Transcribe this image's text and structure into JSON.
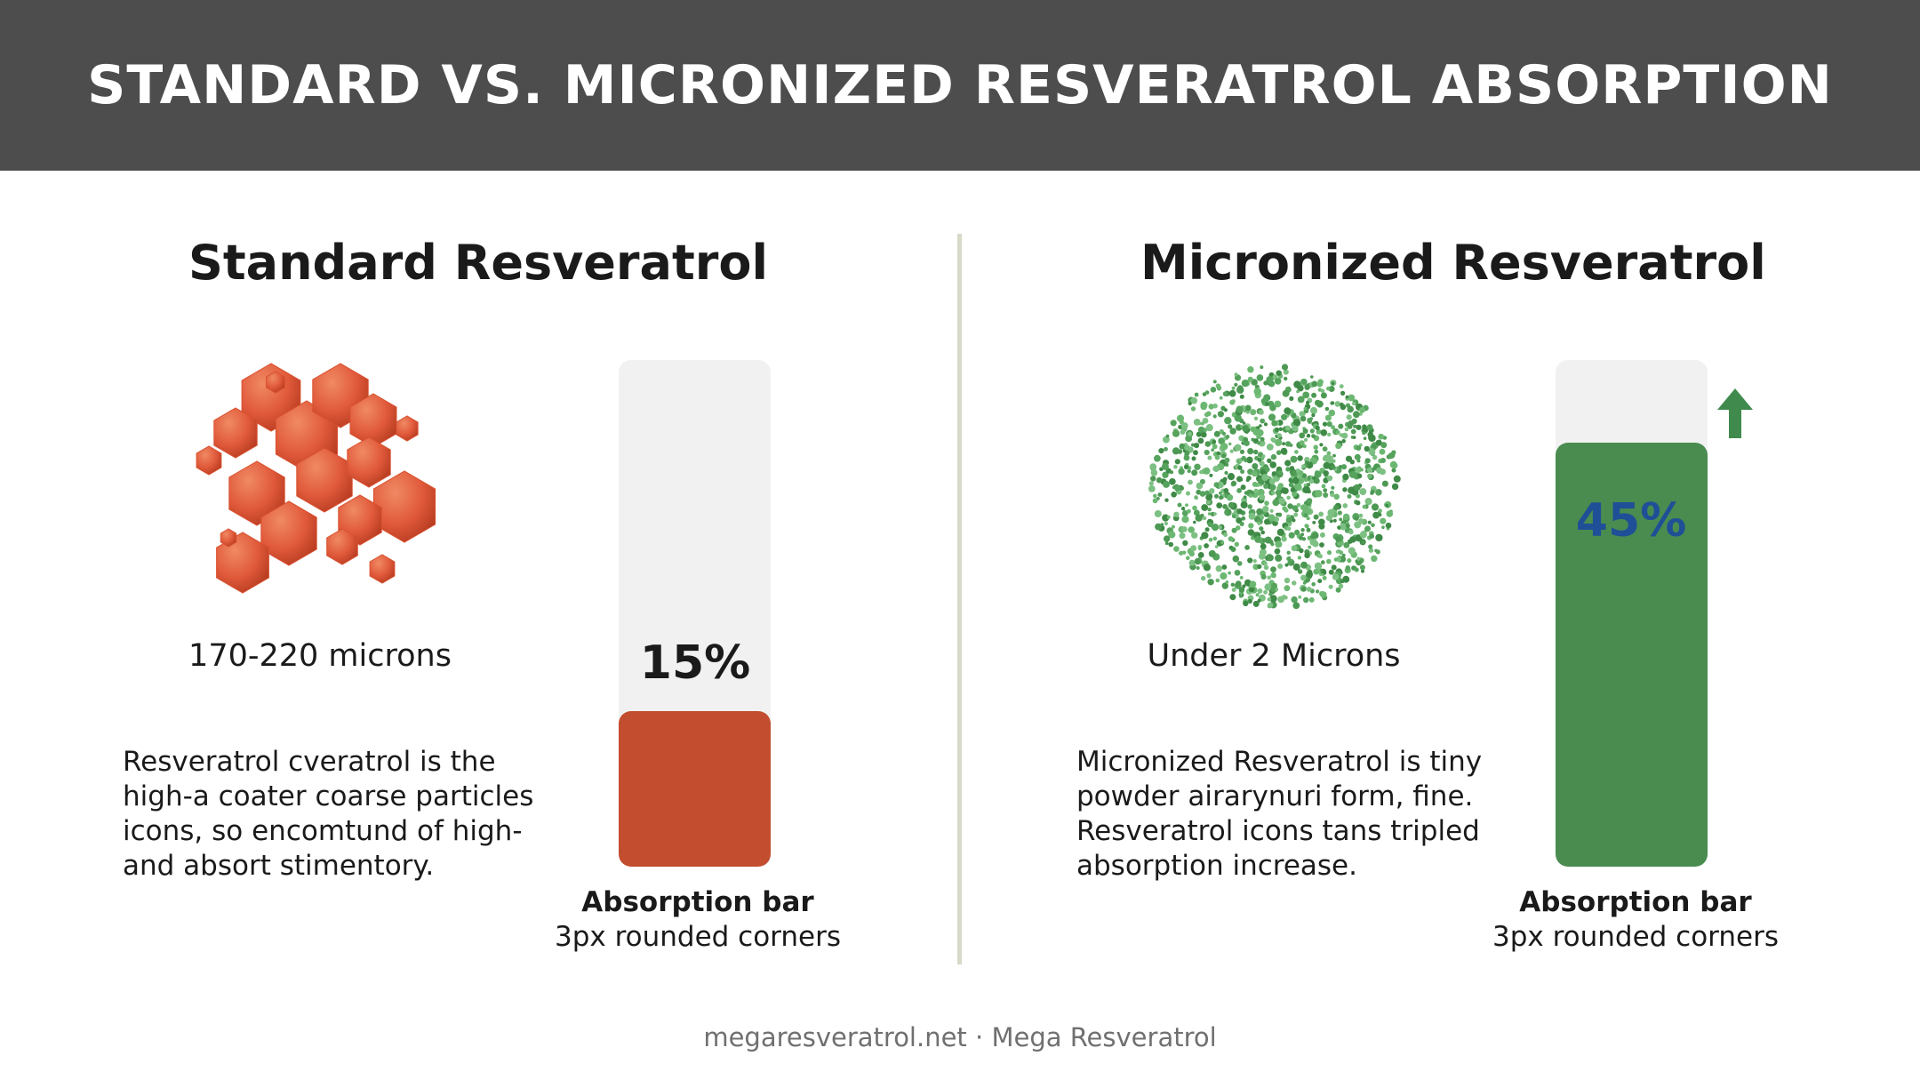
{
  "header": {
    "title": "STANDARD VS. MICRONIZED RESVERATROL ABSORPTION"
  },
  "standard": {
    "title": "Standard Resveratrol",
    "particle_size": "170-220 microns",
    "description": [
      "Resveratrol cveratrol is the",
      "high-a coater coarse particles",
      "icons, so encomtund of high-",
      "and absort stimentory."
    ],
    "absorption_pct": 15,
    "absorption_label": "15%",
    "bar_title": "Absorption bar",
    "bar_note": "3px rounded corners",
    "color": "#c24e2f",
    "icon": "coarse-crystal-cluster"
  },
  "micronized": {
    "title": "Micronized Resveratrol",
    "particle_size": "Under 2 Microns",
    "description": [
      "Micronized Resveratrol is tiny",
      "powder airarynuri form, fine.",
      "Resveratrol icons tans tripled",
      "absorption increase."
    ],
    "absorption_pct": 45,
    "absorption_label": "45%",
    "bar_title": "Absorption bar",
    "bar_note": "3px rounded corners",
    "color": "#4a8c50",
    "label_color": "#1f4f96",
    "icon": "fine-powder-cloud",
    "arrow_icon": "up-arrow-icon"
  },
  "footer": {
    "text": "megaresveratrol.net · Mega Resveratrol"
  }
}
